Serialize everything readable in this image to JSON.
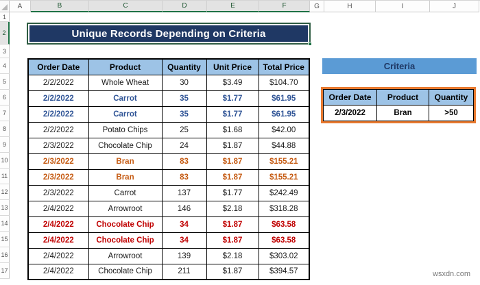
{
  "sheet": {
    "column_headers": [
      "A",
      "B",
      "C",
      "D",
      "E",
      "F",
      "G",
      "H",
      "I",
      "J"
    ],
    "selected_columns": [
      "B",
      "C",
      "D",
      "E",
      "F"
    ],
    "row_headers": [
      "1",
      "2",
      "3",
      "4",
      "5",
      "6",
      "7",
      "8",
      "9",
      "10",
      "11",
      "12",
      "13",
      "14",
      "15",
      "16",
      "17"
    ],
    "selected_rows": [
      "2"
    ]
  },
  "title": {
    "text": "Unique Records Depending on Criteria"
  },
  "main_table": {
    "headers": [
      "Order Date",
      "Product",
      "Quantity",
      "Unit Price",
      "Total Price"
    ],
    "rows": [
      {
        "style": "normal",
        "cells": [
          "2/2/2022",
          "Whole Wheat",
          "30",
          "$3.49",
          "$104.70"
        ]
      },
      {
        "style": "blue",
        "cells": [
          "2/2/2022",
          "Carrot",
          "35",
          "$1.77",
          "$61.95"
        ]
      },
      {
        "style": "blue",
        "cells": [
          "2/2/2022",
          "Carrot",
          "35",
          "$1.77",
          "$61.95"
        ]
      },
      {
        "style": "normal",
        "cells": [
          "2/2/2022",
          "Potato Chips",
          "25",
          "$1.68",
          "$42.00"
        ]
      },
      {
        "style": "normal",
        "cells": [
          "2/3/2022",
          "Chocolate Chip",
          "24",
          "$1.87",
          "$44.88"
        ]
      },
      {
        "style": "brown",
        "cells": [
          "2/3/2022",
          "Bran",
          "83",
          "$1.87",
          "$155.21"
        ]
      },
      {
        "style": "brown",
        "cells": [
          "2/3/2022",
          "Bran",
          "83",
          "$1.87",
          "$155.21"
        ]
      },
      {
        "style": "normal",
        "cells": [
          "2/3/2022",
          "Carrot",
          "137",
          "$1.77",
          "$242.49"
        ]
      },
      {
        "style": "normal",
        "cells": [
          "2/4/2022",
          "Arrowroot",
          "146",
          "$2.18",
          "$318.28"
        ]
      },
      {
        "style": "red",
        "cells": [
          "2/4/2022",
          "Chocolate Chip",
          "34",
          "$1.87",
          "$63.58"
        ]
      },
      {
        "style": "red",
        "cells": [
          "2/4/2022",
          "Chocolate Chip",
          "34",
          "$1.87",
          "$63.58"
        ]
      },
      {
        "style": "normal",
        "cells": [
          "2/4/2022",
          "Arrowroot",
          "139",
          "$2.18",
          "$303.02"
        ]
      },
      {
        "style": "normal",
        "cells": [
          "2/4/2022",
          "Chocolate Chip",
          "211",
          "$1.87",
          "$394.57"
        ]
      }
    ]
  },
  "criteria": {
    "label": "Criteria",
    "headers": [
      "Order Date",
      "Product",
      "Quantity"
    ],
    "values": [
      "2/3/2022",
      "Bran",
      ">50"
    ]
  },
  "watermark": "wsxdn.com",
  "colors": {
    "title_fill": "#1f3864",
    "table_header_fill": "#9dc3e6",
    "criteria_label_fill": "#5b9bd5",
    "criteria_border": "#e8792f",
    "duplicate_blue": "#2f5496",
    "duplicate_brown": "#c55a11",
    "duplicate_red": "#c00000",
    "selection_green": "#1e7145"
  }
}
